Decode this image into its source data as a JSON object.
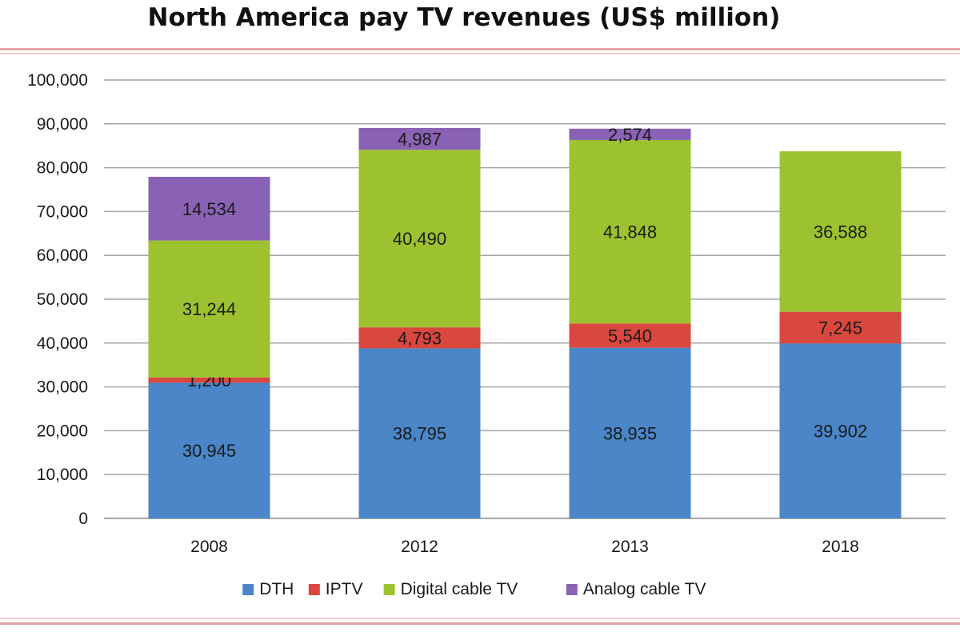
{
  "chart_data": {
    "type": "bar",
    "stacked": true,
    "title": "North America pay TV revenues (US$ million)",
    "categories": [
      "2008",
      "2012",
      "2013",
      "2018"
    ],
    "series": [
      {
        "name": "DTH",
        "color": "#4a86c8",
        "values": [
          30945,
          38795,
          38935,
          39902
        ],
        "labels": [
          "30,945",
          "38,795",
          "38,935",
          "39,902"
        ]
      },
      {
        "name": "IPTV",
        "color": "#d9473e",
        "values": [
          1200,
          4793,
          5540,
          7245
        ],
        "labels": [
          "1,200",
          "4,793",
          "5,540",
          "7,245"
        ]
      },
      {
        "name": "Digital cable TV",
        "color": "#9dc22f",
        "values": [
          31244,
          40490,
          41848,
          36588
        ],
        "labels": [
          "31,244",
          "40,490",
          "41,848",
          "36,588"
        ]
      },
      {
        "name": "Analog cable TV",
        "color": "#8a62b5",
        "values": [
          14534,
          4987,
          2574,
          0
        ],
        "labels": [
          "14,534",
          "4,987",
          "2,574",
          ""
        ]
      }
    ],
    "ylim": [
      0,
      100000
    ],
    "yticks": [
      0,
      10000,
      20000,
      30000,
      40000,
      50000,
      60000,
      70000,
      80000,
      90000,
      100000
    ],
    "ytick_labels": [
      "0",
      "10,000",
      "20,000",
      "30,000",
      "40,000",
      "50,000",
      "60,000",
      "70,000",
      "80,000",
      "90,000",
      "100,000"
    ],
    "legend_labels": [
      "DTH",
      "IPTV",
      "Digital cable TV",
      "Analog cable TV"
    ],
    "legend_position": "bottom",
    "grid": true,
    "xlabel": "",
    "ylabel": ""
  }
}
